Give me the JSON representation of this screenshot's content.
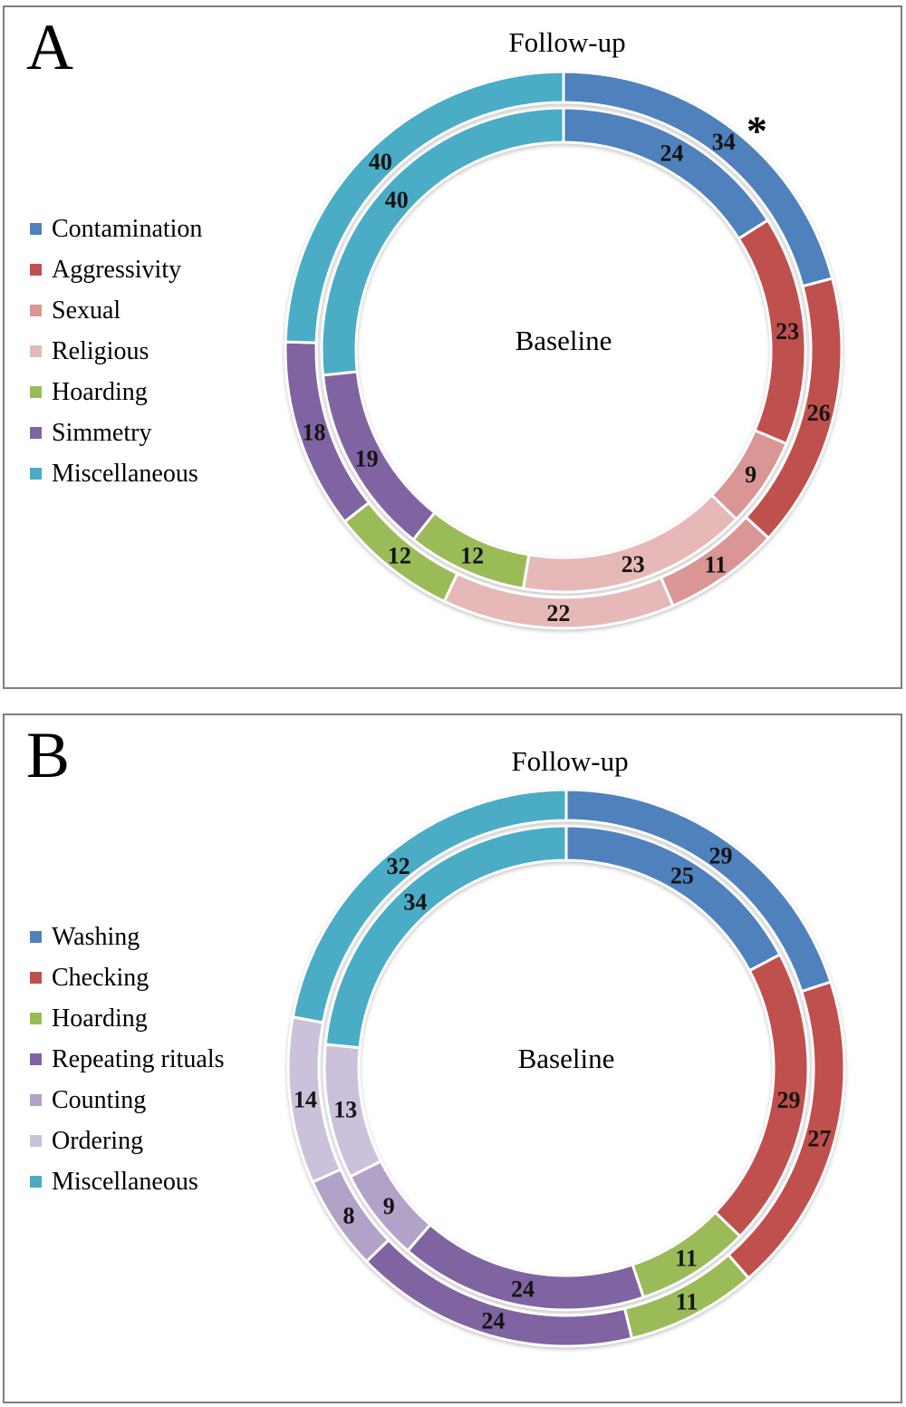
{
  "figure": {
    "panels": [
      {
        "letter": "A",
        "title": "Follow-up",
        "center_label": "Baseline",
        "legend": [
          {
            "label": "Contamination",
            "color": "#4F81BD"
          },
          {
            "label": "Aggressivity",
            "color": "#C0504D"
          },
          {
            "label": "Sexual",
            "color": "#D99694"
          },
          {
            "label": "Religious",
            "color": "#E6B9B8"
          },
          {
            "label": "Hoarding",
            "color": "#9BBB59"
          },
          {
            "label": "Simmetry",
            "color": "#8064A2"
          },
          {
            "label": "Miscellaneous",
            "color": "#4BACC6"
          }
        ],
        "chart_data": {
          "type": "donut",
          "inner_ring_label": "Baseline",
          "outer_ring_label": "Follow-up",
          "categories": [
            "Contamination",
            "Aggressivity",
            "Sexual",
            "Religious",
            "Hoarding",
            "Simmetry",
            "Miscellaneous"
          ],
          "colors": [
            "#4F81BD",
            "#C0504D",
            "#D99694",
            "#E6B9B8",
            "#9BBB59",
            "#8064A2",
            "#4BACC6"
          ],
          "rings": [
            {
              "name": "Baseline",
              "position": "inner",
              "values": [
                24,
                23,
                9,
                23,
                12,
                19,
                40
              ]
            },
            {
              "name": "Follow-up",
              "position": "outer",
              "values": [
                34,
                26,
                11,
                22,
                12,
                18,
                40
              ]
            }
          ],
          "annotation": {
            "text": "*",
            "angle_deg": 40,
            "radius": 332
          }
        }
      },
      {
        "letter": "B",
        "title": "Follow-up",
        "center_label": "Baseline",
        "legend": [
          {
            "label": "Washing",
            "color": "#4F81BD"
          },
          {
            "label": "Checking",
            "color": "#C0504D"
          },
          {
            "label": "Hoarding",
            "color": "#9BBB59"
          },
          {
            "label": "Repeating rituals",
            "color": "#8064A2"
          },
          {
            "label": "Counting",
            "color": "#B3A2C7"
          },
          {
            "label": "Ordering",
            "color": "#CCC1DA"
          },
          {
            "label": "Miscellaneous",
            "color": "#4BACC6"
          }
        ],
        "chart_data": {
          "type": "donut",
          "inner_ring_label": "Baseline",
          "outer_ring_label": "Follow-up",
          "categories": [
            "Washing",
            "Checking",
            "Hoarding",
            "Repeating rituals",
            "Counting",
            "Ordering",
            "Miscellaneous"
          ],
          "colors": [
            "#4F81BD",
            "#C0504D",
            "#9BBB59",
            "#8064A2",
            "#B3A2C7",
            "#CCC1DA",
            "#4BACC6"
          ],
          "rings": [
            {
              "name": "Baseline",
              "position": "inner",
              "values": [
                25,
                29,
                11,
                24,
                9,
                13,
                34
              ]
            },
            {
              "name": "Follow-up",
              "position": "outer",
              "values": [
                29,
                27,
                11,
                24,
                8,
                14,
                32
              ]
            }
          ]
        }
      }
    ]
  }
}
